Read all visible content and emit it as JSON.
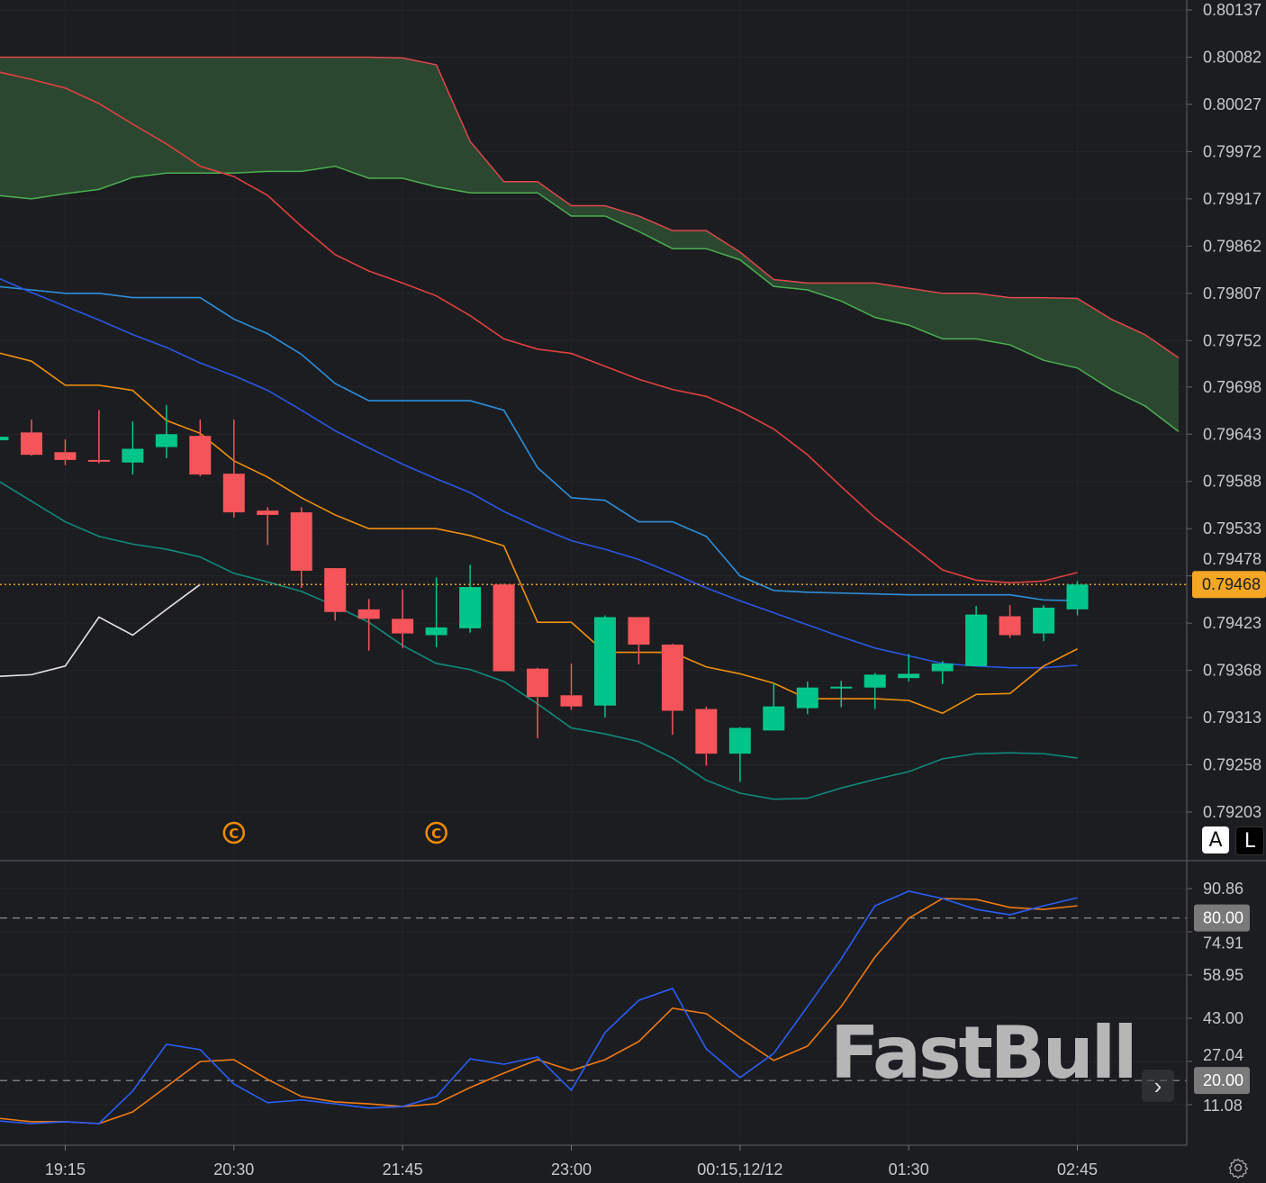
{
  "chart_data": {
    "type": "candlestick",
    "main_panel": {
      "price_axis_labels": [
        "0.80137",
        "0.80082",
        "0.80027",
        "0.79972",
        "0.79917",
        "0.79862",
        "0.79807",
        "0.79752",
        "0.79698",
        "0.79643",
        "0.79588",
        "0.79533",
        "0.79478",
        "0.79423",
        "0.79368",
        "0.79313",
        "0.79258",
        "0.79203"
      ],
      "ylim": [
        0.79203,
        0.80137
      ],
      "last_price": 0.79468,
      "last_price_label": "0.79468",
      "candles_ohlc": [
        [
          0.79636,
          0.79641,
          0.79635,
          0.7964
        ],
        [
          0.79645,
          0.7966,
          0.79618,
          0.79619
        ],
        [
          0.79622,
          0.79637,
          0.79607,
          0.79613
        ],
        [
          0.79613,
          0.79671,
          0.79609,
          0.79612
        ],
        [
          0.7961,
          0.79658,
          0.79596,
          0.79626
        ],
        [
          0.79628,
          0.79677,
          0.79615,
          0.79643
        ],
        [
          0.79641,
          0.7966,
          0.79594,
          0.79596
        ],
        [
          0.79597,
          0.7966,
          0.79546,
          0.79552
        ],
        [
          0.79554,
          0.79558,
          0.79514,
          0.79549
        ],
        [
          0.79552,
          0.79558,
          0.79464,
          0.79484
        ],
        [
          0.79487,
          0.79487,
          0.79426,
          0.79436
        ],
        [
          0.79439,
          0.79451,
          0.79391,
          0.79428
        ],
        [
          0.79428,
          0.79462,
          0.79394,
          0.79411
        ],
        [
          0.79409,
          0.79476,
          0.79395,
          0.79418
        ],
        [
          0.79417,
          0.79491,
          0.79412,
          0.79465
        ],
        [
          0.79468,
          0.79469,
          0.79367,
          0.79367
        ],
        [
          0.7937,
          0.79371,
          0.79289,
          0.79337
        ],
        [
          0.79339,
          0.79376,
          0.79322,
          0.79326
        ],
        [
          0.79327,
          0.79432,
          0.79313,
          0.7943
        ],
        [
          0.7943,
          0.7943,
          0.79375,
          0.79398
        ],
        [
          0.79398,
          0.79399,
          0.79293,
          0.79321
        ],
        [
          0.79323,
          0.79326,
          0.79257,
          0.79271
        ],
        [
          0.79271,
          0.79302,
          0.79238,
          0.79301
        ],
        [
          0.79298,
          0.79353,
          0.79298,
          0.79326
        ],
        [
          0.79324,
          0.79355,
          0.79317,
          0.79348
        ],
        [
          0.79348,
          0.79356,
          0.79325,
          0.79349
        ],
        [
          0.79348,
          0.79365,
          0.79323,
          0.79363
        ],
        [
          0.79359,
          0.79387,
          0.79355,
          0.79364
        ],
        [
          0.79367,
          0.79379,
          0.79352,
          0.79376
        ],
        [
          0.79373,
          0.79443,
          0.79373,
          0.79433
        ],
        [
          0.79431,
          0.79444,
          0.79406,
          0.79409
        ],
        [
          0.79411,
          0.79444,
          0.79402,
          0.79441
        ],
        [
          0.79439,
          0.79472,
          0.79432,
          0.79468
        ]
      ],
      "cloud_upper": [
        0.80082,
        0.80082,
        0.80082,
        0.80082,
        0.80082,
        0.80082,
        0.80082,
        0.80082,
        0.80082,
        0.80082,
        0.80082,
        0.80082,
        0.80081,
        0.80073,
        0.79984,
        0.79937,
        0.79937,
        0.79909,
        0.79909,
        0.79897,
        0.7988,
        0.7988,
        0.79855,
        0.79823,
        0.79819,
        0.79819,
        0.79819,
        0.79813,
        0.79807,
        0.79807,
        0.79802,
        0.79802,
        0.79801,
        0.79777,
        0.79759,
        0.79732
      ],
      "cloud_lower": [
        0.79921,
        0.79917,
        0.79923,
        0.79928,
        0.79942,
        0.79947,
        0.79947,
        0.79947,
        0.79949,
        0.79949,
        0.79955,
        0.79941,
        0.79941,
        0.79931,
        0.79924,
        0.79924,
        0.79924,
        0.79897,
        0.79897,
        0.79879,
        0.79859,
        0.79859,
        0.79846,
        0.79815,
        0.79811,
        0.79798,
        0.79779,
        0.7977,
        0.79754,
        0.79754,
        0.79747,
        0.79729,
        0.7972,
        0.79695,
        0.79676,
        0.79646
      ],
      "lines": [
        {
          "color": "#e0403f",
          "values": [
            0.80065,
            0.80056,
            0.80046,
            0.80028,
            0.80004,
            0.79981,
            0.79955,
            0.79943,
            0.79921,
            0.79885,
            0.79852,
            0.79833,
            0.79819,
            0.79804,
            0.79781,
            0.79754,
            0.79742,
            0.79737,
            0.79722,
            0.79707,
            0.79695,
            0.79687,
            0.7967,
            0.79649,
            0.79619,
            0.79582,
            0.79546,
            0.79516,
            0.79485,
            0.79473,
            0.7947,
            0.79472,
            0.79482
          ]
        },
        {
          "color": "#2e8fd9",
          "values": [
            0.79815,
            0.79811,
            0.79807,
            0.79807,
            0.79802,
            0.79802,
            0.79802,
            0.79777,
            0.7976,
            0.79736,
            0.79702,
            0.79682,
            0.79682,
            0.79682,
            0.79682,
            0.79671,
            0.79604,
            0.79569,
            0.79566,
            0.79541,
            0.79541,
            0.79524,
            0.79478,
            0.79461,
            0.79459,
            0.79458,
            0.79457,
            0.79456,
            0.79456,
            0.79456,
            0.79456,
            0.7945,
            0.79449
          ]
        },
        {
          "color": "#2a57e3",
          "values": [
            0.79825,
            0.79808,
            0.79792,
            0.79776,
            0.79759,
            0.79744,
            0.79726,
            0.79711,
            0.79694,
            0.79671,
            0.79647,
            0.79627,
            0.79608,
            0.79591,
            0.79575,
            0.79553,
            0.79535,
            0.79519,
            0.79509,
            0.79497,
            0.79481,
            0.79464,
            0.79449,
            0.79435,
            0.79421,
            0.79407,
            0.79394,
            0.79385,
            0.79376,
            0.79373,
            0.79371,
            0.79371,
            0.79374
          ]
        },
        {
          "color": "#ef900c",
          "values": [
            0.79738,
            0.79728,
            0.797,
            0.797,
            0.79694,
            0.79659,
            0.79644,
            0.79612,
            0.79593,
            0.79569,
            0.79549,
            0.79533,
            0.79533,
            0.79533,
            0.79525,
            0.79513,
            0.79424,
            0.79424,
            0.79389,
            0.79389,
            0.79389,
            0.79372,
            0.79364,
            0.79353,
            0.79335,
            0.79335,
            0.79335,
            0.79333,
            0.79318,
            0.7934,
            0.79341,
            0.79373,
            0.79393
          ]
        },
        {
          "color": "#0f8b7b",
          "values": [
            0.79589,
            0.79565,
            0.79541,
            0.79524,
            0.79515,
            0.79509,
            0.795,
            0.79481,
            0.79471,
            0.7946,
            0.79443,
            0.79424,
            0.79397,
            0.79376,
            0.79369,
            0.79355,
            0.79329,
            0.79301,
            0.79294,
            0.79285,
            0.79266,
            0.7924,
            0.79225,
            0.79218,
            0.79219,
            0.79231,
            0.79241,
            0.7925,
            0.79265,
            0.79271,
            0.79272,
            0.79271,
            0.79266
          ]
        },
        {
          "color": "#e6e6e6",
          "values": [
            0.79361,
            0.79363,
            0.79373,
            0.7943,
            0.79409,
            0.79439,
            0.79468
          ]
        }
      ],
      "event_markers": [
        {
          "index": 7,
          "label": "C"
        },
        {
          "index": 13,
          "label": "C"
        }
      ]
    },
    "oscillator_panel": {
      "axis_labels": [
        "90.86",
        "74.91",
        "58.95",
        "43.00",
        "27.04",
        "11.08"
      ],
      "ylim": [
        0,
        100
      ],
      "levels": [
        {
          "value": 80,
          "label": "80.00"
        },
        {
          "value": 20,
          "label": "20.00"
        }
      ],
      "k_line": {
        "color": "#2a5ef5",
        "values": [
          5.1,
          4.1,
          4.8,
          4.1,
          16.1,
          33.4,
          31.4,
          18.7,
          11.8,
          12.8,
          11.4,
          9.8,
          10.4,
          14.1,
          28.0,
          26.0,
          28.7,
          16.4,
          37.7,
          49.6,
          54.0,
          31.7,
          21.1,
          30.0,
          47.3,
          64.9,
          84.5,
          89.9,
          87.2,
          83.2,
          81.2,
          84.5,
          87.5
        ]
      },
      "d_line": {
        "color": "#f07a12",
        "values": [
          6.1,
          4.8,
          4.8,
          4.1,
          8.4,
          17.7,
          27.0,
          27.7,
          20.4,
          14.1,
          12.1,
          11.4,
          10.4,
          11.4,
          17.4,
          22.7,
          27.7,
          23.7,
          27.7,
          34.4,
          46.7,
          44.7,
          35.7,
          27.4,
          32.7,
          47.3,
          65.6,
          79.9,
          87.2,
          86.9,
          83.9,
          83.2,
          84.5
        ]
      }
    },
    "time_axis_labels": [
      {
        "index": 2,
        "label": "19:15"
      },
      {
        "index": 7,
        "label": "20:30"
      },
      {
        "index": 12,
        "label": "21:45"
      },
      {
        "index": 17,
        "label": "23:00"
      },
      {
        "index": 22,
        "label": "00:15,12/12"
      },
      {
        "index": 27,
        "label": "01:30"
      },
      {
        "index": 32,
        "label": "02:45"
      }
    ],
    "colors": {
      "up": "#00c58a",
      "down": "#f5555a",
      "cloud_fill": "#2c4a31",
      "cloud_upper": "#e0474c",
      "cloud_lower": "#4caf50",
      "background": "#1c1d21"
    }
  },
  "controls": {
    "auto_scale": "A",
    "log_scale": "L",
    "scroll_right": "›"
  },
  "watermark": "FastBull"
}
